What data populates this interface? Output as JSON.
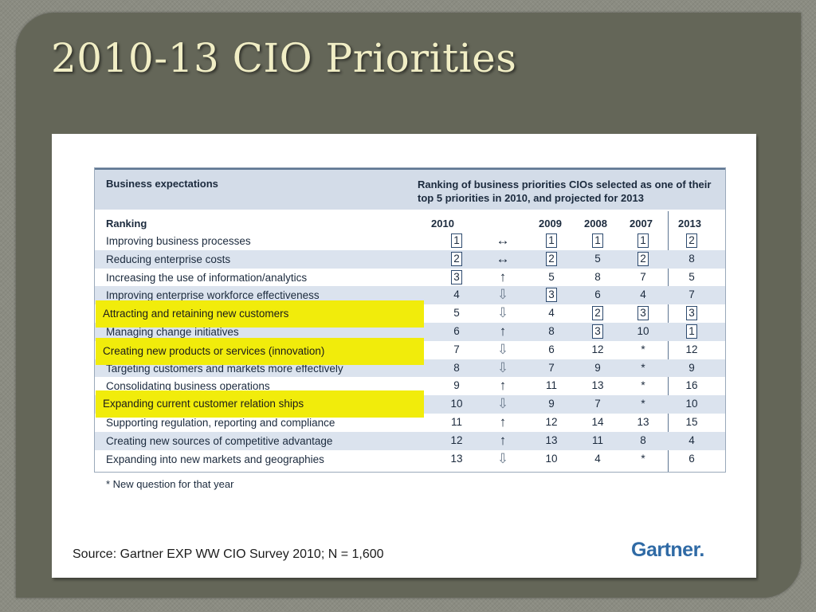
{
  "slide": {
    "title": "2010-13 CIO Priorities"
  },
  "table": {
    "header_left": "Business expectations",
    "header_right": "Ranking of business priorities CIOs selected as one of their top 5 priorities in 2010, and projected for 2013",
    "columns": {
      "ranking": "Ranking",
      "y2010": "2010",
      "y2009": "2009",
      "y2008": "2008",
      "y2007": "2007",
      "y2013": "2013"
    },
    "rows": [
      {
        "label": "Improving business processes",
        "v2010": "1",
        "trend": "↔",
        "v2009": "1",
        "v2008": "1",
        "v2007": "1",
        "v2013": "2"
      },
      {
        "label": "Reducing enterprise costs",
        "v2010": "2",
        "trend": "↔",
        "v2009": "2",
        "v2008": "5",
        "v2007": "2",
        "v2013": "8"
      },
      {
        "label": "Increasing the use of information/analytics",
        "v2010": "3",
        "trend": "↑",
        "v2009": "5",
        "v2008": "8",
        "v2007": "7",
        "v2013": "5"
      },
      {
        "label": "Improving enterprise workforce effectiveness",
        "v2010": "4",
        "trend": "⇩",
        "v2009": "3",
        "v2008": "6",
        "v2007": "4",
        "v2013": "7"
      },
      {
        "label": "Attracting and retaining new customers",
        "v2010": "5",
        "trend": "⇩",
        "v2009": "4",
        "v2008": "2",
        "v2007": "3",
        "v2013": "3"
      },
      {
        "label": "Managing change initiatives",
        "v2010": "6",
        "trend": "↑",
        "v2009": "8",
        "v2008": "3",
        "v2007": "10",
        "v2013": "1"
      },
      {
        "label": "Creating new products or services (innovation)",
        "v2010": "7",
        "trend": "⇩",
        "v2009": "6",
        "v2008": "12",
        "v2007": "*",
        "v2013": "12"
      },
      {
        "label": "Targeting customers and markets more effectively",
        "v2010": "8",
        "trend": "⇩",
        "v2009": "7",
        "v2008": "9",
        "v2007": "*",
        "v2013": "9"
      },
      {
        "label": "Consolidating business operations",
        "v2010": "9",
        "trend": "↑",
        "v2009": "11",
        "v2008": "13",
        "v2007": "*",
        "v2013": "16"
      },
      {
        "label": "Expanding current customer relation ships",
        "v2010": "10",
        "trend": "⇩",
        "v2009": "9",
        "v2008": "7",
        "v2007": "*",
        "v2013": "10"
      },
      {
        "label": "Supporting regulation, reporting and compliance",
        "v2010": "11",
        "trend": "↑",
        "v2009": "12",
        "v2008": "14",
        "v2007": "13",
        "v2013": "15"
      },
      {
        "label": "Creating new sources of competitive advantage",
        "v2010": "12",
        "trend": "↑",
        "v2009": "13",
        "v2008": "11",
        "v2007": "8",
        "v2013": "4"
      },
      {
        "label": "Expanding into new markets and geographies",
        "v2010": "13",
        "trend": "⇩",
        "v2009": "10",
        "v2008": "4",
        "v2007": "*",
        "v2013": "6"
      }
    ],
    "footnote": "* New question for that year"
  },
  "source": "Source: Gartner EXP WW CIO Survey 2010; N = 1,600",
  "brand": "Gartner.",
  "colors": {
    "highlight": "#f1ec0b",
    "shaded_row": "#dbe3ee",
    "header_bg": "#d3dce8",
    "brand": "#2f6aa5",
    "title": "#f1eec5"
  }
}
